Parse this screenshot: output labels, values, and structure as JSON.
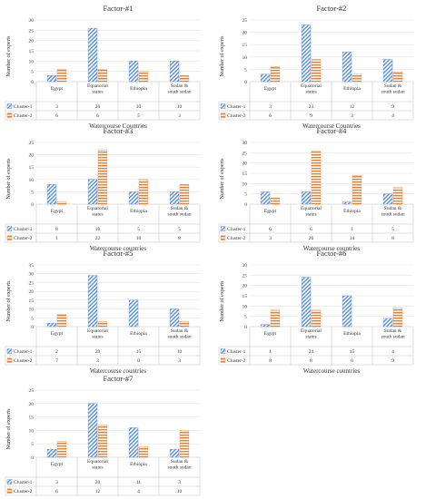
{
  "figure": {
    "common_ylabel": "Number of experts",
    "categories": [
      "Egypt",
      "Equatorial states",
      "Ethiopia",
      "Sudan & south sudan"
    ],
    "series_names": [
      "Cluster-1",
      "Cluster-2"
    ],
    "colors": {
      "cluster1": "#4a86d8",
      "cluster2": "#ed7d31"
    }
  },
  "chart_data": [
    {
      "type": "bar",
      "title": "Factor-#1",
      "xlabel": "Watercourse Countries",
      "ylabel": "Number of experts",
      "categories": [
        "Egypt",
        "Equatorial states",
        "Ethiopia",
        "Sudan & south sudan"
      ],
      "ylim": [
        0,
        30
      ],
      "yticks": [
        0,
        5,
        10,
        15,
        20,
        25,
        30
      ],
      "series": [
        {
          "name": "Cluster-1",
          "values": [
            3,
            26,
            10,
            10
          ]
        },
        {
          "name": "Cluster-2",
          "values": [
            6,
            6,
            5,
            3
          ]
        }
      ]
    },
    {
      "type": "bar",
      "title": "Factor-#2",
      "xlabel": "Watercourse Countries",
      "ylabel": "Number of experts",
      "categories": [
        "Egypt",
        "Equatorial states",
        "Ethiopia",
        "Sudan & south sudan"
      ],
      "ylim": [
        0,
        25
      ],
      "yticks": [
        0,
        5,
        10,
        15,
        20,
        25
      ],
      "series": [
        {
          "name": "Cluster-1",
          "values": [
            3,
            23,
            12,
            9
          ]
        },
        {
          "name": "Cluster-2",
          "values": [
            6,
            9,
            3,
            4
          ]
        }
      ]
    },
    {
      "type": "bar",
      "title": "Factor-#3",
      "xlabel": "Watercourse countries",
      "ylabel": "Number of experts",
      "categories": [
        "Egypt",
        "Equatorial states",
        "Ethiopia",
        "Sudan & south sudan"
      ],
      "ylim": [
        0,
        25
      ],
      "yticks": [
        0,
        5,
        10,
        15,
        20,
        25
      ],
      "series": [
        {
          "name": "Cluster-1",
          "values": [
            8,
            10,
            5,
            5
          ]
        },
        {
          "name": "Cluster-2",
          "values": [
            1,
            22,
            10,
            8
          ]
        }
      ]
    },
    {
      "type": "bar",
      "title": "Factor-#4",
      "xlabel": "Watercourse countries",
      "ylabel": "Number of experts",
      "categories": [
        "Egypt",
        "Equatorial states",
        "Ethiopia",
        "Sudan & south sudan"
      ],
      "ylim": [
        0,
        30
      ],
      "yticks": [
        0,
        5,
        10,
        15,
        20,
        25,
        30
      ],
      "series": [
        {
          "name": "Cluster-1",
          "values": [
            6,
            6,
            1,
            5
          ]
        },
        {
          "name": "Cluster-2",
          "values": [
            3,
            26,
            14,
            8
          ]
        }
      ]
    },
    {
      "type": "bar",
      "title": "Factor-#5",
      "xlabel": "Watercourse countries",
      "ylabel": "Number of experts",
      "categories": [
        "Egypt",
        "Equatorial states",
        "Ethiopia",
        "Sudan & south sudan"
      ],
      "ylim": [
        0,
        35
      ],
      "yticks": [
        0,
        5,
        10,
        15,
        20,
        25,
        30,
        35
      ],
      "series": [
        {
          "name": "Cluster-1",
          "values": [
            2,
            29,
            15,
            10
          ]
        },
        {
          "name": "Cluster-2",
          "values": [
            7,
            3,
            0,
            3
          ]
        }
      ]
    },
    {
      "type": "bar",
      "title": "Factor-#6",
      "xlabel": "Watercourse countries",
      "ylabel": "Number of experts",
      "categories": [
        "Egypt",
        "Equatorial states",
        "Ethiopia",
        "Sudan & south sudan"
      ],
      "ylim": [
        0,
        30
      ],
      "yticks": [
        0,
        5,
        10,
        15,
        20,
        25,
        30
      ],
      "series": [
        {
          "name": "Cluster-1",
          "values": [
            1,
            24,
            15,
            4
          ]
        },
        {
          "name": "Cluster-2",
          "values": [
            8,
            8,
            0,
            9
          ]
        }
      ]
    },
    {
      "type": "bar",
      "title": "Factor-#7",
      "xlabel": "Watercourse countries",
      "ylabel": "Number of experts",
      "categories": [
        "Egypt",
        "Equatorial states",
        "Ethiopia",
        "Sudan & south sudan"
      ],
      "ylim": [
        0,
        25
      ],
      "yticks": [
        0,
        5,
        10,
        15,
        20,
        25
      ],
      "series": [
        {
          "name": "Cluster-1",
          "values": [
            3,
            20,
            11,
            3
          ]
        },
        {
          "name": "Cluster-2",
          "values": [
            6,
            12,
            4,
            10
          ]
        }
      ]
    }
  ]
}
